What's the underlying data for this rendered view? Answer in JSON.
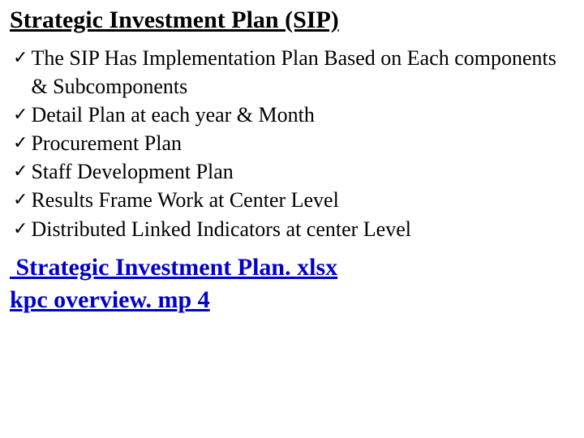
{
  "title": "Strategic Investment Plan (SIP)",
  "bullets": [
    "The SIP Has Implementation Plan Based on Each components & Subcomponents",
    "Detail Plan at each year & Month",
    "Procurement Plan",
    "Staff Development Plan",
    "Results Frame Work at Center Level",
    "Distributed Linked Indicators at center Level"
  ],
  "links": [
    "Strategic Investment Plan. xlsx",
    "kpc overview. mp 4"
  ],
  "styling": {
    "check_glyph": "✓",
    "title_fontsize": 30,
    "bullet_fontsize": 26,
    "link_fontsize": 30,
    "text_color": "#000000",
    "link_color": "#0000cc",
    "background_color": "#ffffff",
    "font_family": "Times New Roman"
  }
}
